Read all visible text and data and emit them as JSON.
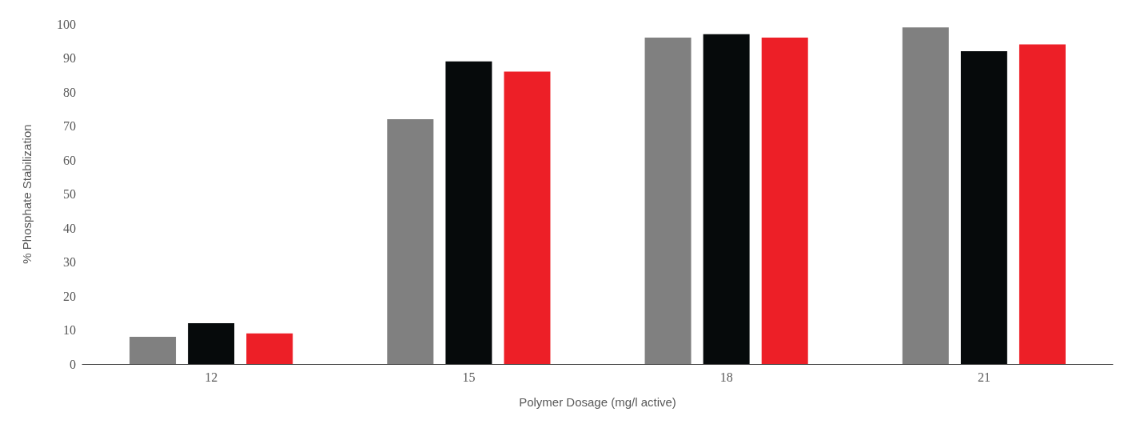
{
  "chart_data": {
    "type": "bar",
    "xlabel": "Polymer Dosage (mg/l active)",
    "ylabel": "% Phosphate Stabilization",
    "categories": [
      "12",
      "15",
      "18",
      "21"
    ],
    "series": [
      {
        "color": "#808080",
        "values": [
          8,
          72,
          96,
          99
        ]
      },
      {
        "color": "#060a0b",
        "values": [
          12,
          89,
          97,
          92
        ]
      },
      {
        "color": "#ed1f27",
        "values": [
          9,
          86,
          96,
          94
        ]
      }
    ],
    "ylim": [
      0,
      100
    ],
    "yticks": [
      0,
      10,
      20,
      30,
      40,
      50,
      60,
      70,
      80,
      90,
      100
    ],
    "grid": false
  }
}
